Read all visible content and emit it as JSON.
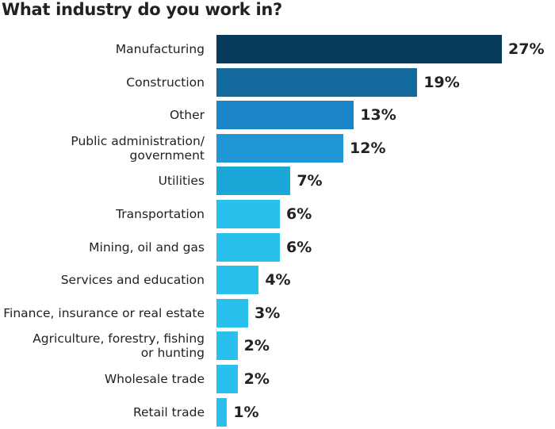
{
  "chart_data": {
    "type": "bar",
    "orientation": "horizontal",
    "title": "What industry do you work in?",
    "categories": [
      "Manufacturing",
      "Construction",
      "Other",
      "Public administration/\ngovernment",
      "Utilities",
      "Transportation",
      "Mining, oil and gas",
      "Services and education",
      "Finance, insurance or real estate",
      "Agriculture, forestry, fishing\nor hunting",
      "Wholesale trade",
      "Retail trade"
    ],
    "values": [
      27,
      19,
      13,
      12,
      7,
      6,
      6,
      4,
      3,
      2,
      2,
      1
    ],
    "value_labels": [
      "27%",
      "19%",
      "13%",
      "12%",
      "7%",
      "6%",
      "6%",
      "4%",
      "3%",
      "2%",
      "2%",
      "1%"
    ],
    "colors": [
      "#073b5c",
      "#12699e",
      "#1a86c8",
      "#2196d6",
      "#1aa6d6",
      "#29c0ee",
      "#29c0ee",
      "#29c0ee",
      "#29c0ee",
      "#29c0ee",
      "#29c0ee",
      "#29c0ee"
    ],
    "xlim": [
      0,
      27
    ]
  }
}
